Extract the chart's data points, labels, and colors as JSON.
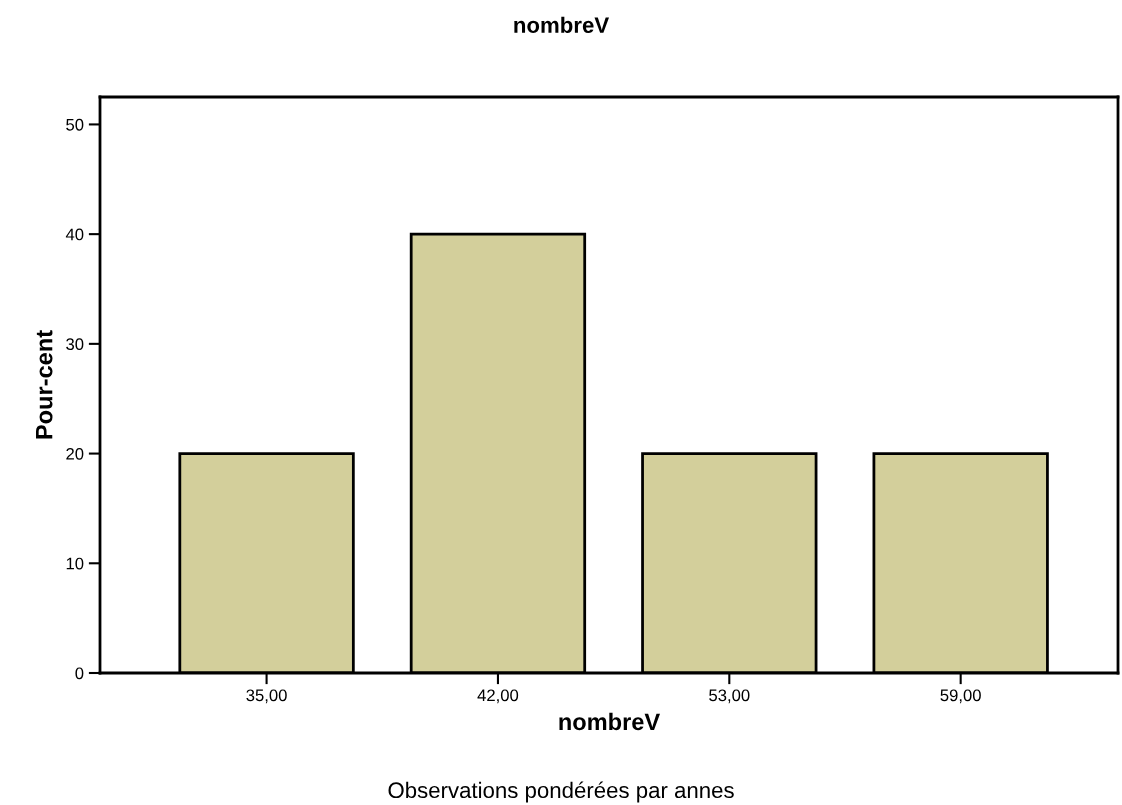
{
  "chart_data": {
    "type": "bar",
    "title": "nombreV",
    "xlabel": "nombreV",
    "ylabel": "Pour-cent",
    "categories": [
      "35,00",
      "42,00",
      "53,00",
      "59,00"
    ],
    "values": [
      20,
      40,
      20,
      20
    ],
    "color": "#d3cf9b",
    "ylim": [
      0,
      52.5
    ],
    "yticks": [
      0,
      10,
      20,
      30,
      40,
      50
    ],
    "grid": false,
    "legend": false,
    "annotations": [
      "Observations pondérées par annes"
    ]
  }
}
